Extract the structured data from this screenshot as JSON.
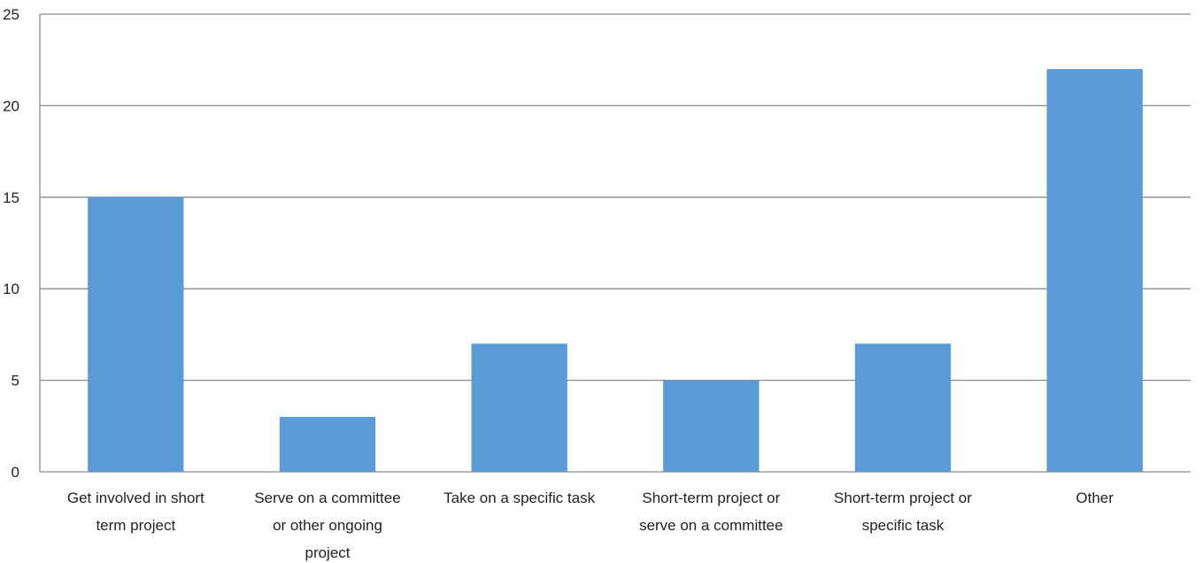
{
  "chart_data": {
    "type": "bar",
    "categories": [
      [
        "Get involved in short",
        "term project"
      ],
      [
        "Serve on a committee",
        "or other ongoing",
        "project"
      ],
      [
        "Take on a specific task"
      ],
      [
        "Short-term project or",
        "serve on a committee"
      ],
      [
        "Short-term project or",
        "specific task"
      ],
      [
        "Other"
      ]
    ],
    "values": [
      15,
      3,
      7,
      5,
      7,
      22
    ],
    "ylim": [
      0,
      25
    ],
    "yticks": [
      "0",
      "5",
      "10",
      "15",
      "20",
      "25"
    ],
    "grid": true,
    "bar_color": "#5b9bd5",
    "grid_color": "#8c8c8c",
    "axis_color": "#8c8c8c"
  }
}
